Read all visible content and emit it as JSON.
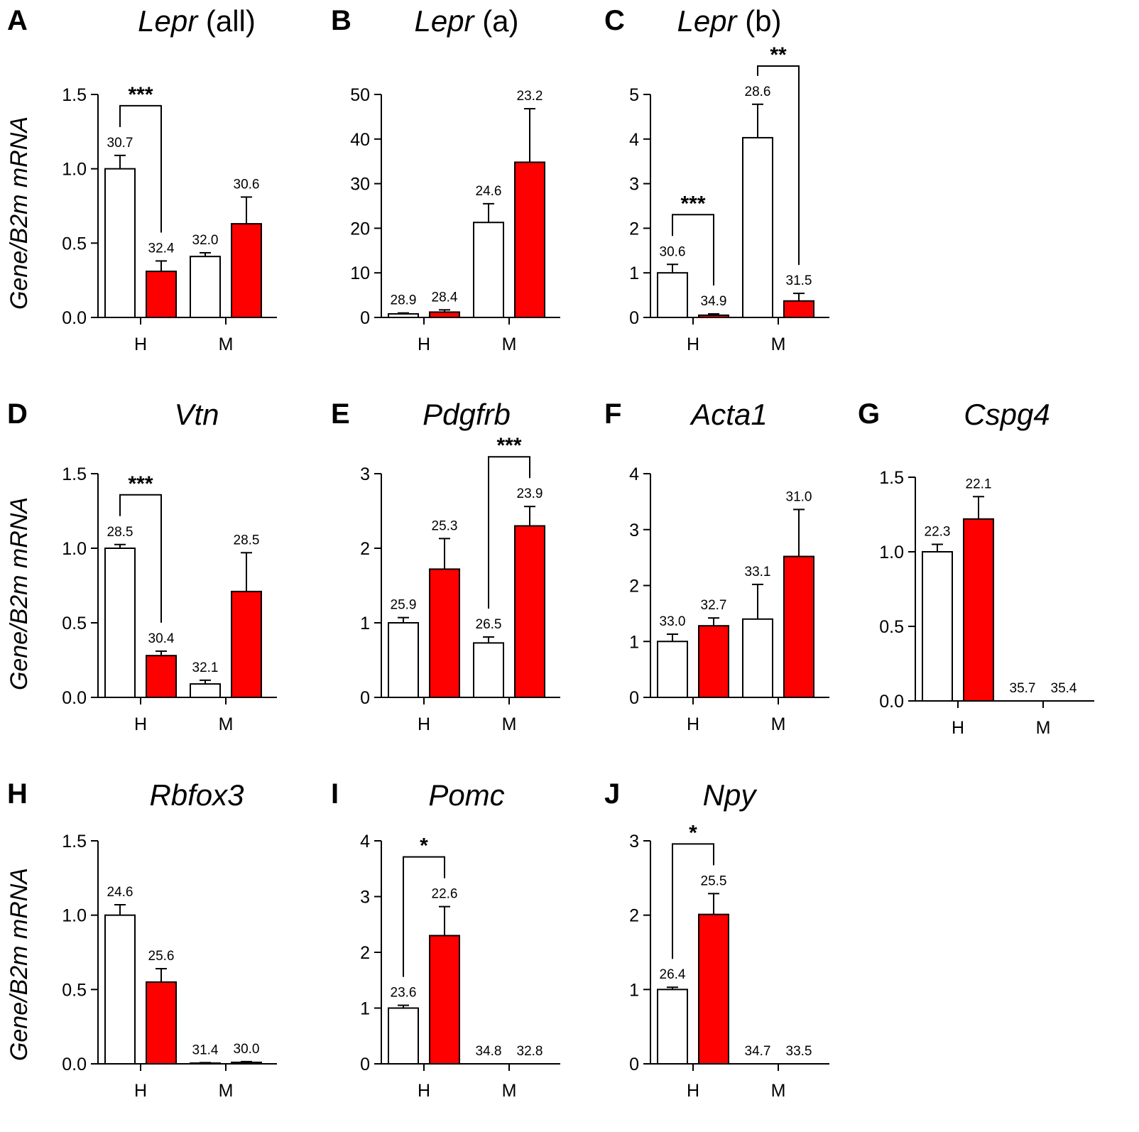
{
  "colors": {
    "control": "#ffffff",
    "treated": "#ff0000",
    "stroke": "#000000"
  },
  "y_axis_label": "Gene/B2m mRNA",
  "chart_data": [
    {
      "type": "bar",
      "panel": "A",
      "gene": "Lepr",
      "suffix": " (all)",
      "categories": [
        "H",
        "M"
      ],
      "ylim": [
        0,
        1.5
      ],
      "yticks": [
        0.0,
        0.5,
        1.0,
        1.5
      ],
      "ytick_labels": [
        "0.0",
        "0.5",
        "1.0",
        "1.5"
      ],
      "series": [
        {
          "name": "white",
          "values": [
            1.0,
            0.41
          ],
          "errors": [
            0.09,
            0.025
          ],
          "labels": [
            "30.7",
            "32.0"
          ]
        },
        {
          "name": "red",
          "values": [
            0.31,
            0.63
          ],
          "errors": [
            0.07,
            0.18
          ],
          "labels": [
            "32.4",
            "30.6"
          ]
        }
      ],
      "significance": [
        {
          "group": 0,
          "text": "***"
        }
      ]
    },
    {
      "type": "bar",
      "panel": "B",
      "gene": "Lepr",
      "suffix": " (a)",
      "categories": [
        "H",
        "M"
      ],
      "ylim": [
        0,
        50
      ],
      "yticks": [
        0,
        10,
        20,
        30,
        40,
        50
      ],
      "ytick_labels": [
        "0",
        "10",
        "20",
        "30",
        "40",
        "50"
      ],
      "series": [
        {
          "name": "white",
          "values": [
            0.8,
            21.3
          ],
          "errors": [
            0.2,
            4.2
          ],
          "labels": [
            "28.9",
            "24.6"
          ]
        },
        {
          "name": "red",
          "values": [
            1.2,
            34.8
          ],
          "errors": [
            0.5,
            12.0
          ],
          "labels": [
            "28.4",
            "23.2"
          ]
        }
      ],
      "significance": []
    },
    {
      "type": "bar",
      "panel": "C",
      "gene": "Lepr",
      "suffix": " (b)",
      "categories": [
        "H",
        "M"
      ],
      "ylim": [
        0,
        5
      ],
      "yticks": [
        0,
        1,
        2,
        3,
        4,
        5
      ],
      "ytick_labels": [
        "0",
        "1",
        "2",
        "3",
        "4",
        "5"
      ],
      "series": [
        {
          "name": "white",
          "values": [
            1.0,
            4.03
          ],
          "errors": [
            0.19,
            0.75
          ],
          "labels": [
            "30.6",
            "28.6"
          ]
        },
        {
          "name": "red",
          "values": [
            0.05,
            0.37
          ],
          "errors": [
            0.03,
            0.17
          ],
          "labels": [
            "34.9",
            "31.5"
          ]
        }
      ],
      "significance": [
        {
          "group": 0,
          "text": "***"
        },
        {
          "group": 1,
          "text": "**"
        }
      ]
    },
    {
      "type": "bar",
      "panel": "D",
      "gene": "Vtn",
      "suffix": "",
      "categories": [
        "H",
        "M"
      ],
      "ylim": [
        0,
        1.5
      ],
      "yticks": [
        0.0,
        0.5,
        1.0,
        1.5
      ],
      "ytick_labels": [
        "0.0",
        "0.5",
        "1.0",
        "1.5"
      ],
      "series": [
        {
          "name": "white",
          "values": [
            1.0,
            0.09
          ],
          "errors": [
            0.025,
            0.025
          ],
          "labels": [
            "28.5",
            "32.1"
          ]
        },
        {
          "name": "red",
          "values": [
            0.28,
            0.71
          ],
          "errors": [
            0.03,
            0.26
          ],
          "labels": [
            "30.4",
            "28.5"
          ]
        }
      ],
      "significance": [
        {
          "group": 0,
          "text": "***"
        }
      ]
    },
    {
      "type": "bar",
      "panel": "E",
      "gene": "Pdgfrb",
      "suffix": "",
      "categories": [
        "H",
        "M"
      ],
      "ylim": [
        0,
        3
      ],
      "yticks": [
        0,
        1,
        2,
        3
      ],
      "ytick_labels": [
        "0",
        "1",
        "2",
        "3"
      ],
      "series": [
        {
          "name": "white",
          "values": [
            1.0,
            0.73
          ],
          "errors": [
            0.07,
            0.08
          ],
          "labels": [
            "25.9",
            "26.5"
          ]
        },
        {
          "name": "red",
          "values": [
            1.72,
            2.3
          ],
          "errors": [
            0.41,
            0.26
          ],
          "labels": [
            "25.3",
            "23.9"
          ]
        }
      ],
      "significance": [
        {
          "group": 1,
          "text": "***"
        }
      ]
    },
    {
      "type": "bar",
      "panel": "F",
      "gene": "Acta1",
      "suffix": "",
      "categories": [
        "H",
        "M"
      ],
      "ylim": [
        0,
        4
      ],
      "yticks": [
        0,
        1,
        2,
        3,
        4
      ],
      "ytick_labels": [
        "0",
        "1",
        "2",
        "3",
        "4"
      ],
      "series": [
        {
          "name": "white",
          "values": [
            1.0,
            1.4
          ],
          "errors": [
            0.13,
            0.62
          ],
          "labels": [
            "33.0",
            "33.1"
          ]
        },
        {
          "name": "red",
          "values": [
            1.28,
            2.52
          ],
          "errors": [
            0.14,
            0.84
          ],
          "labels": [
            "32.7",
            "31.0"
          ]
        }
      ],
      "significance": []
    },
    {
      "type": "bar",
      "panel": "G",
      "gene": "Cspg4",
      "suffix": "",
      "categories": [
        "H",
        "M"
      ],
      "ylim": [
        0,
        1.5
      ],
      "yticks": [
        0.0,
        0.5,
        1.0,
        1.5
      ],
      "ytick_labels": [
        "0.0",
        "0.5",
        "1.0",
        "1.5"
      ],
      "series": [
        {
          "name": "white",
          "values": [
            1.0,
            0.0
          ],
          "errors": [
            0.05,
            0
          ],
          "labels": [
            "22.3",
            "35.7"
          ]
        },
        {
          "name": "red",
          "values": [
            1.22,
            0.0
          ],
          "errors": [
            0.15,
            0
          ],
          "labels": [
            "22.1",
            "35.4"
          ]
        }
      ],
      "significance": []
    },
    {
      "type": "bar",
      "panel": "H",
      "gene": "Rbfox3",
      "suffix": "",
      "categories": [
        "H",
        "M"
      ],
      "ylim": [
        0,
        1.5
      ],
      "yticks": [
        0.0,
        0.5,
        1.0,
        1.5
      ],
      "ytick_labels": [
        "0.0",
        "0.5",
        "1.0",
        "1.5"
      ],
      "series": [
        {
          "name": "white",
          "values": [
            1.0,
            0.005
          ],
          "errors": [
            0.07,
            0.003
          ],
          "labels": [
            "24.6",
            "31.4"
          ]
        },
        {
          "name": "red",
          "values": [
            0.55,
            0.01
          ],
          "errors": [
            0.09,
            0.005
          ],
          "labels": [
            "25.6",
            "30.0"
          ]
        }
      ],
      "significance": []
    },
    {
      "type": "bar",
      "panel": "I",
      "gene": "Pomc",
      "suffix": "",
      "categories": [
        "H",
        "M"
      ],
      "ylim": [
        0,
        4
      ],
      "yticks": [
        0,
        1,
        2,
        3,
        4
      ],
      "ytick_labels": [
        "0",
        "1",
        "2",
        "3",
        "4"
      ],
      "series": [
        {
          "name": "white",
          "values": [
            1.0,
            0.0
          ],
          "errors": [
            0.05,
            0
          ],
          "labels": [
            "23.6",
            "34.8"
          ]
        },
        {
          "name": "red",
          "values": [
            2.3,
            0.0
          ],
          "errors": [
            0.52,
            0
          ],
          "labels": [
            "22.6",
            "32.8"
          ]
        }
      ],
      "significance": [
        {
          "group": 0,
          "text": "*"
        }
      ]
    },
    {
      "type": "bar",
      "panel": "J",
      "gene": "Npy",
      "suffix": "",
      "categories": [
        "H",
        "M"
      ],
      "ylim": [
        0,
        3
      ],
      "yticks": [
        0,
        1,
        2,
        3
      ],
      "ytick_labels": [
        "0",
        "1",
        "2",
        "3"
      ],
      "series": [
        {
          "name": "white",
          "values": [
            1.0,
            0.0
          ],
          "errors": [
            0.03,
            0
          ],
          "labels": [
            "26.4",
            "34.7"
          ]
        },
        {
          "name": "red",
          "values": [
            2.01,
            0.0
          ],
          "errors": [
            0.28,
            0
          ],
          "labels": [
            "25.5",
            "33.5"
          ]
        }
      ],
      "significance": [
        {
          "group": 0,
          "text": "*"
        }
      ]
    }
  ]
}
